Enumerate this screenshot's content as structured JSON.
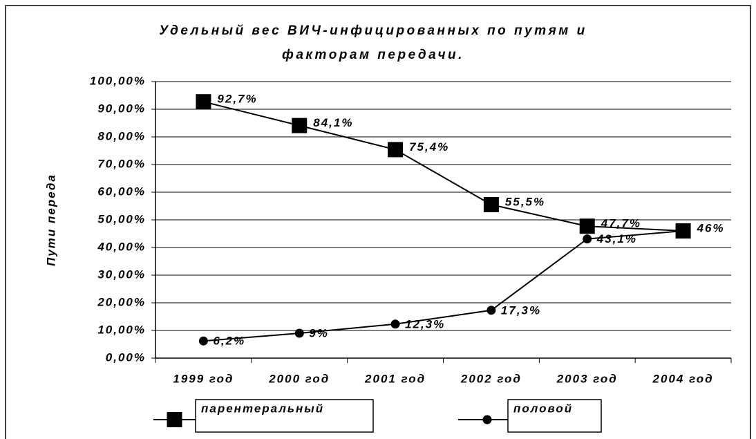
{
  "chart_data": {
    "type": "line",
    "title": [
      "Удельный вес ВИЧ-инфицированных по путям и",
      "факторам передачи."
    ],
    "ylabel": "Пути переда",
    "categories": [
      "1999 год",
      "2000 год",
      "2001 год",
      "2002 год",
      "2003 год",
      "2004 год"
    ],
    "series": [
      {
        "name": "парентеральный",
        "color": "#000000",
        "marker": "square",
        "values": [
          92.7,
          84.1,
          75.4,
          55.5,
          47.7,
          46
        ],
        "value_labels": [
          "92,7%",
          "84,1%",
          "75,4%",
          "55,5%",
          "47,7%",
          "46%"
        ]
      },
      {
        "name": "половой",
        "color": "#000000",
        "marker": "circle",
        "values": [
          6.2,
          9,
          12.3,
          17.3,
          43.1,
          46
        ],
        "value_labels": [
          "6,2%",
          "9%",
          "12,3%",
          "17,3%",
          "43,1%",
          null
        ]
      }
    ],
    "ylim": [
      0,
      100
    ],
    "yticks": [
      {
        "value": 0,
        "label": "0,00%"
      },
      {
        "value": 10,
        "label": "10,00%"
      },
      {
        "value": 20,
        "label": "20,00%"
      },
      {
        "value": 30,
        "label": "30,00%"
      },
      {
        "value": 40,
        "label": "40,00%"
      },
      {
        "value": 50,
        "label": "50,00%"
      },
      {
        "value": 60,
        "label": "60,00%"
      },
      {
        "value": 70,
        "label": "70,00%"
      },
      {
        "value": 80,
        "label": "80,00%"
      },
      {
        "value": 90,
        "label": "90,00%"
      },
      {
        "value": 100,
        "label": "100,00%"
      }
    ],
    "grid": true,
    "legend": "bottom"
  }
}
